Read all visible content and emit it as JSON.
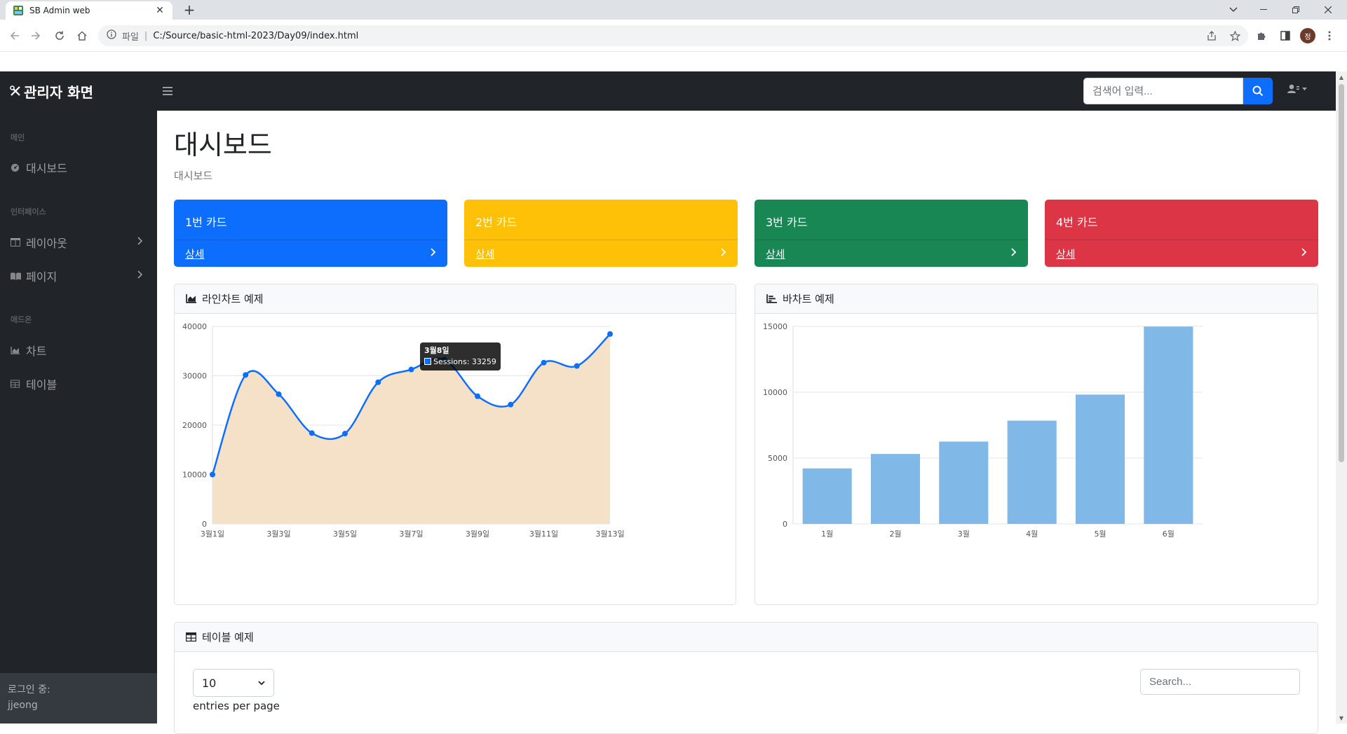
{
  "browser": {
    "tab_title": "SB Admin web",
    "url_scheme": "파일",
    "url": "C:/Source/basic-html-2023/Day09/index.html",
    "profile_initial": "정"
  },
  "topnav": {
    "brand": "관리자 화면",
    "search_placeholder": "검색어 입력..."
  },
  "sidebar": {
    "sections": [
      {
        "heading": "메인",
        "items": [
          {
            "label": "대시보드",
            "icon": "palette-icon",
            "expandable": false
          }
        ]
      },
      {
        "heading": "인터페이스",
        "items": [
          {
            "label": "레이아웃",
            "icon": "columns-icon",
            "expandable": true
          },
          {
            "label": "페이지",
            "icon": "book-icon",
            "expandable": true
          }
        ]
      },
      {
        "heading": "애드온",
        "items": [
          {
            "label": "차트",
            "icon": "chart-area-icon",
            "expandable": false
          },
          {
            "label": "테이블",
            "icon": "table-icon",
            "expandable": false
          }
        ]
      }
    ],
    "footer_label": "로그인 중:",
    "footer_user": "jjeong"
  },
  "main": {
    "title": "대시보드",
    "breadcrumb": "대시보드",
    "cards": [
      {
        "title": "1번 카드",
        "link": "상세",
        "color": "#0d6efd"
      },
      {
        "title": "2번 카드",
        "link": "상세",
        "color": "#ffc107"
      },
      {
        "title": "3번 카드",
        "link": "상세",
        "color": "#198754"
      },
      {
        "title": "4번 카드",
        "link": "상세",
        "color": "#dc3545"
      }
    ],
    "line_panel_title": "라인차트 예제",
    "bar_panel_title": "바차트 예제",
    "table_panel_title": "테이블 예제",
    "table": {
      "page_length": "10",
      "entries_label": "entries per page",
      "search_placeholder": "Search..."
    }
  },
  "tooltip": {
    "title": "3월8일",
    "label": "Sessions: 33259"
  },
  "chart_data": [
    {
      "type": "area",
      "title": "",
      "xlabel": "",
      "ylabel": "",
      "x": [
        "3월1일",
        "3월2일",
        "3월3일",
        "3월4일",
        "3월5일",
        "3월6일",
        "3월7일",
        "3월8일",
        "3월9일",
        "3월10일",
        "3월11일",
        "3월12일",
        "3월13일"
      ],
      "tick_labels": [
        "3월1일",
        "3월3일",
        "3월5일",
        "3월7일",
        "3월9일",
        "3월11일",
        "3월13일"
      ],
      "series": [
        {
          "name": "Sessions",
          "values": [
            10000,
            30162,
            26263,
            18394,
            18287,
            28682,
            31274,
            33259,
            25849,
            24159,
            32651,
            31984,
            38451
          ]
        }
      ],
      "ylim": [
        0,
        40000
      ],
      "yticks": [
        0,
        10000,
        20000,
        30000,
        40000
      ],
      "grid": true,
      "line_color": "#0d6efd",
      "fill_color": "#f5e1c8"
    },
    {
      "type": "bar",
      "title": "",
      "xlabel": "",
      "ylabel": "",
      "categories": [
        "1월",
        "2월",
        "3월",
        "4월",
        "5월",
        "6월"
      ],
      "values": [
        4215,
        5312,
        6251,
        7841,
        9821,
        14984
      ],
      "ylim": [
        0,
        15000
      ],
      "yticks": [
        0,
        5000,
        10000,
        15000
      ],
      "grid": true,
      "bar_color": "#80b8e8"
    }
  ]
}
